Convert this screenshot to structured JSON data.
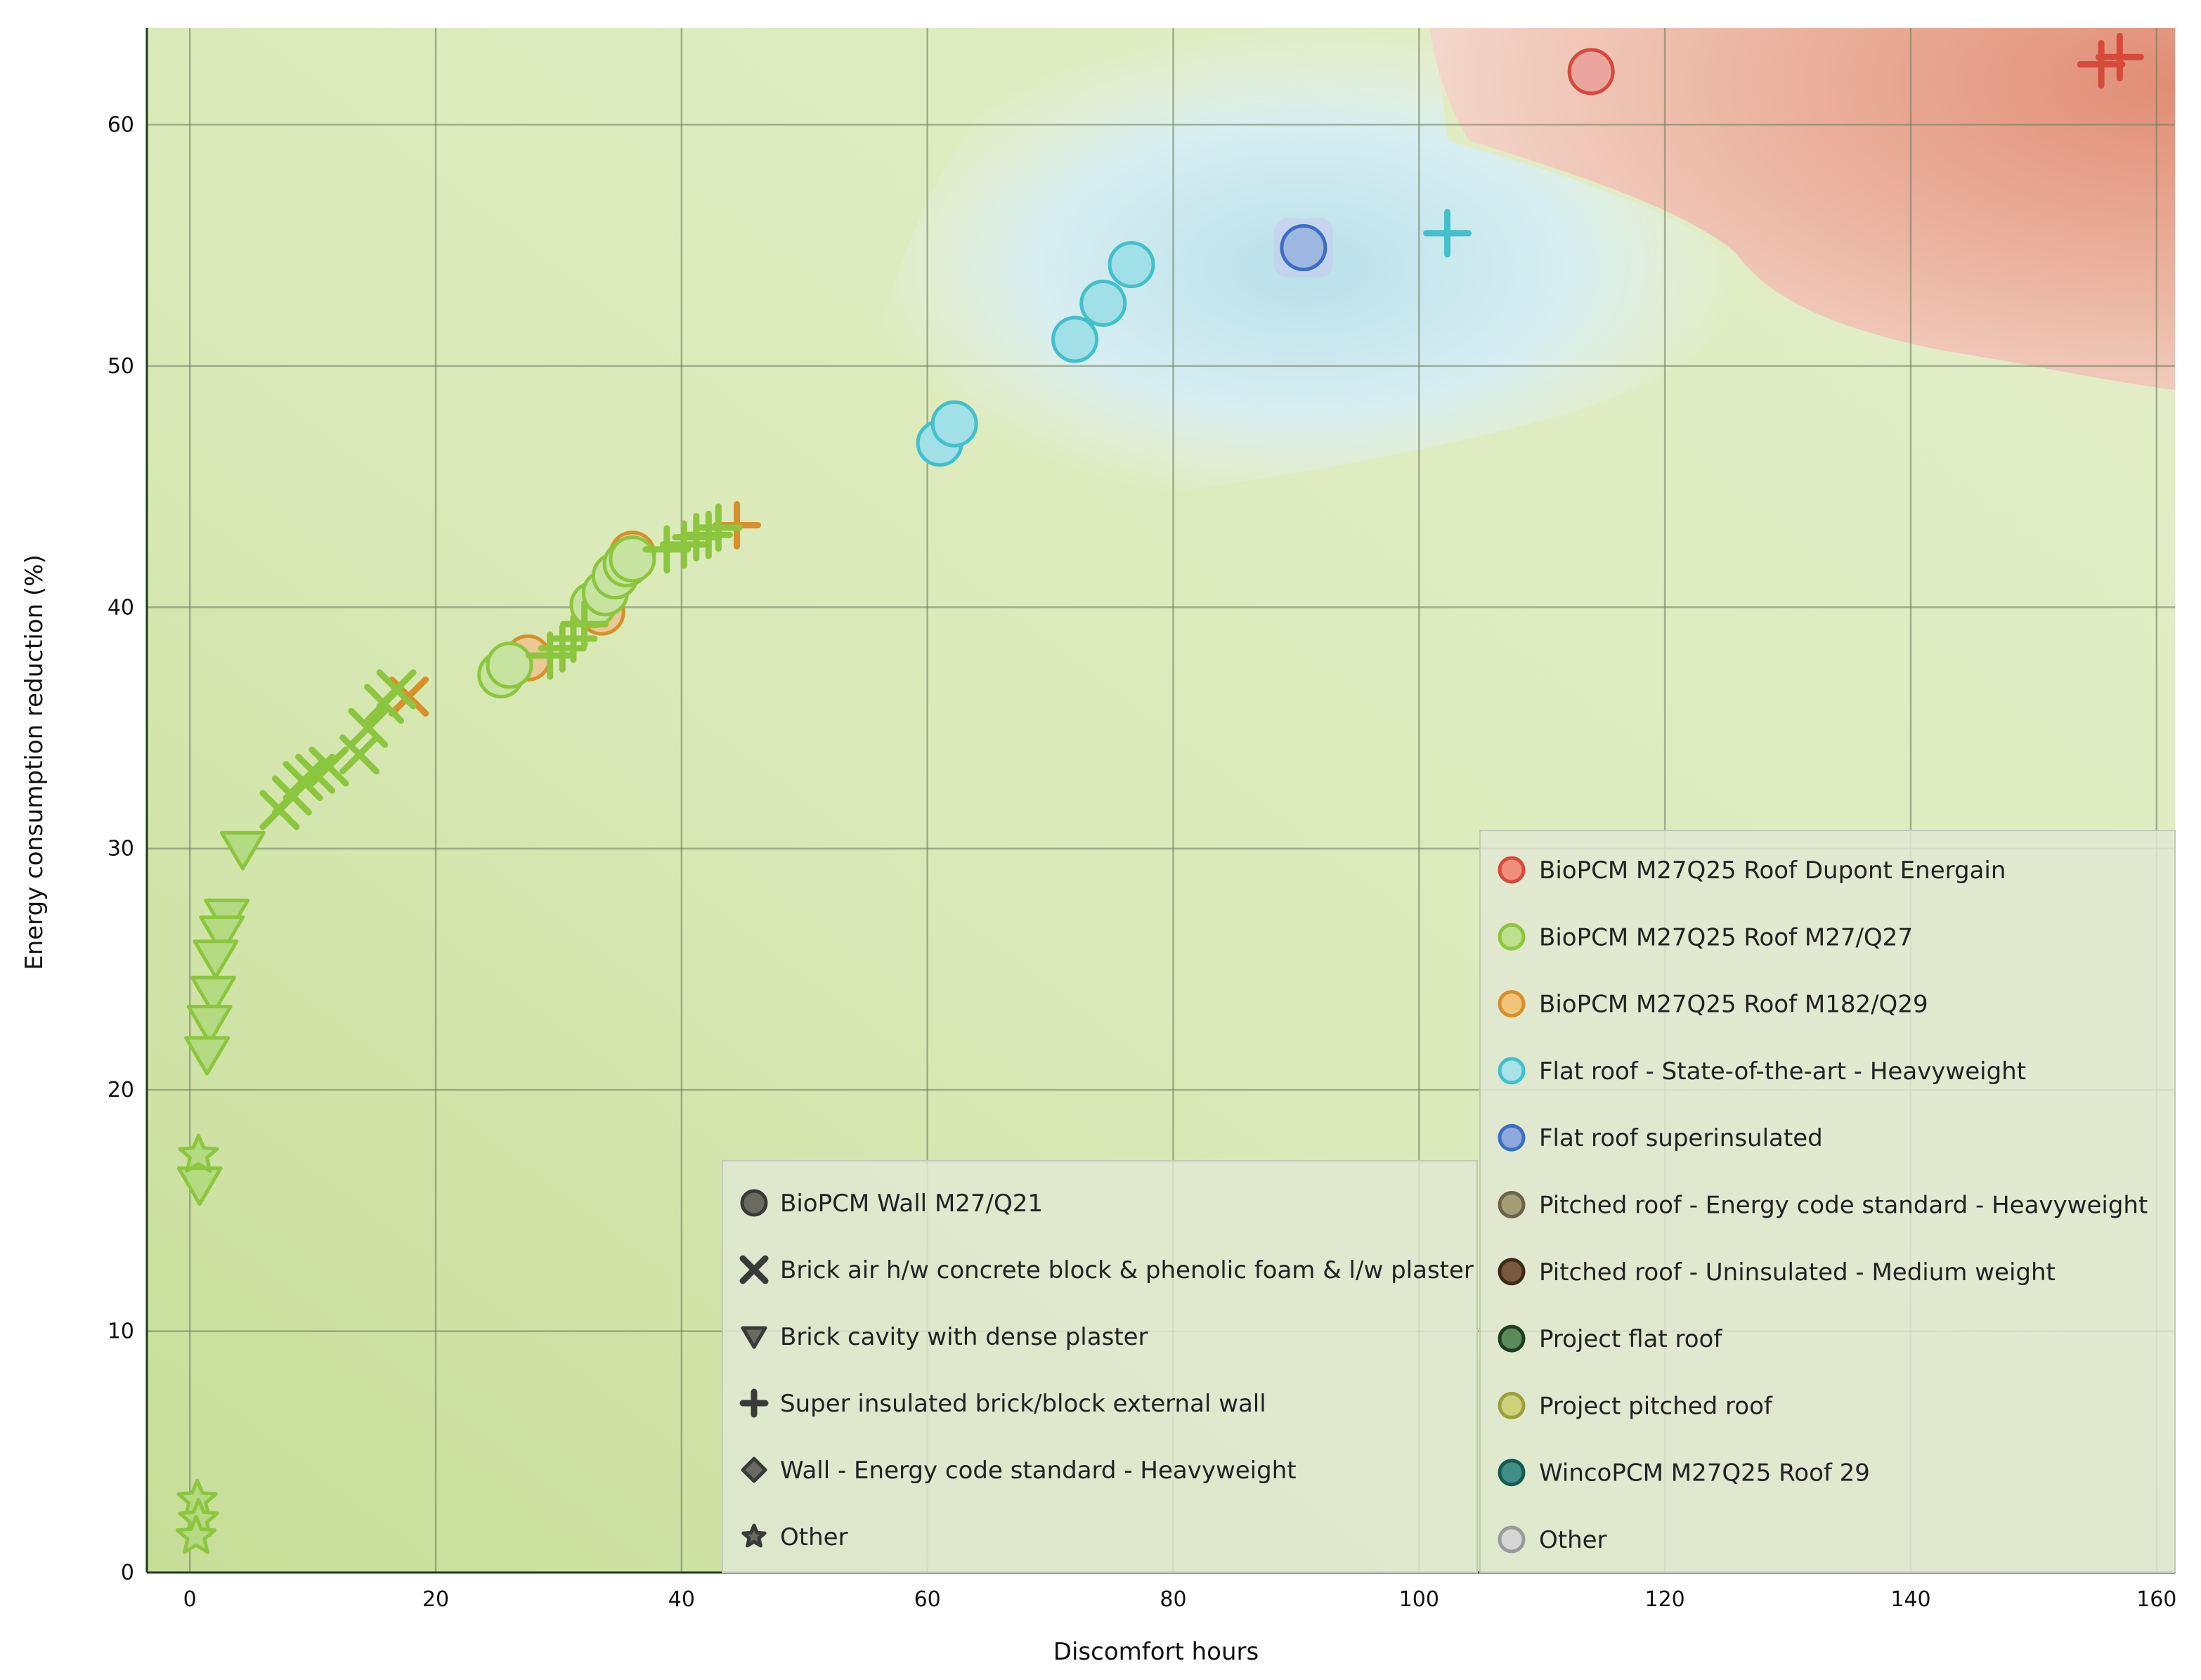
{
  "chart_data": {
    "type": "scatter",
    "title": "",
    "xlabel": "Discomfort hours",
    "ylabel": "Energy consumption reduction (%)",
    "xlim": [
      -3.5,
      161.5
    ],
    "ylim": [
      0,
      64
    ],
    "x_ticks": [
      "0",
      "20",
      "40",
      "60",
      "80",
      "100",
      "120",
      "140",
      "160"
    ],
    "y_ticks": [
      "0",
      "10",
      "20",
      "30",
      "40",
      "50",
      "60"
    ],
    "grid": true,
    "colors": {
      "green": "#8cc63f",
      "orange": "#d7902a",
      "cyan": "#42c0cc",
      "blue": "#3b6fc4",
      "red": "#d64a3c",
      "background_green": "#d3e6b0",
      "background_blue": "#cde9f0",
      "background_red": "#e9a58e"
    },
    "shape_legend": {
      "position": "bottom-center",
      "entries": [
        {
          "label": "BioPCM Wall M27/Q21",
          "marker": "circle"
        },
        {
          "label": "Brick air h/w concrete block & phenolic foam & l/w plaster",
          "marker": "x"
        },
        {
          "label": "Brick cavity with dense plaster",
          "marker": "triangle-down"
        },
        {
          "label": "Super insulated brick/block external wall",
          "marker": "plus"
        },
        {
          "label": "Wall - Energy code standard - Heavyweight",
          "marker": "diamond"
        },
        {
          "label": "Other",
          "marker": "star"
        }
      ]
    },
    "color_legend": {
      "position": "bottom-right",
      "entries": [
        {
          "label": "BioPCM M27Q25 Roof Dupont Energain",
          "fill": "#f08f7c",
          "stroke": "#d64a3c"
        },
        {
          "label": "BioPCM M27Q25 Roof M27/Q27",
          "fill": "#bfe08e",
          "stroke": "#8cc63f"
        },
        {
          "label": "BioPCM M27Q25 Roof M182/Q29",
          "fill": "#f2c57c",
          "stroke": "#d7902a"
        },
        {
          "label": "Flat roof - State-of-the-art - Heavyweight",
          "fill": "#a8e3e8",
          "stroke": "#42c0cc"
        },
        {
          "label": "Flat roof superinsulated",
          "fill": "#8fa9dc",
          "stroke": "#3b6fc4"
        },
        {
          "label": "Pitched roof - Energy code standard - Heavyweight",
          "fill": "#a59d76",
          "stroke": "#6b6448"
        },
        {
          "label": "Pitched roof - Uninsulated - Medium weight",
          "fill": "#7a5a3c",
          "stroke": "#3e2a18"
        },
        {
          "label": "Project flat roof",
          "fill": "#5d8a5a",
          "stroke": "#1e3e1e"
        },
        {
          "label": "Project pitched roof",
          "fill": "#cfd27a",
          "stroke": "#9aa03a"
        },
        {
          "label": "WincoPCM M27Q25 Roof 29",
          "fill": "#3f8f86",
          "stroke": "#155a52"
        },
        {
          "label": "Other",
          "fill": "#d6d6d6",
          "stroke": "#9a9a9a"
        }
      ]
    },
    "series": [
      {
        "name": "BioPCM M27Q25 Roof Dupont Energain",
        "color": "#d64a3c",
        "points": [
          {
            "x": 114,
            "y": 62.2,
            "marker": "circle"
          },
          {
            "x": 155.5,
            "y": 62.5,
            "marker": "plus"
          },
          {
            "x": 157,
            "y": 62.8,
            "marker": "plus"
          }
        ]
      },
      {
        "name": "Flat roof - State-of-the-art - Heavyweight",
        "color": "#42c0cc",
        "points": [
          {
            "x": 61,
            "y": 46.8,
            "marker": "circle"
          },
          {
            "x": 62.2,
            "y": 47.6,
            "marker": "circle"
          },
          {
            "x": 72,
            "y": 51.1,
            "marker": "circle"
          },
          {
            "x": 74.3,
            "y": 52.6,
            "marker": "circle"
          },
          {
            "x": 76.6,
            "y": 54.2,
            "marker": "circle"
          },
          {
            "x": 102.3,
            "y": 55.5,
            "marker": "plus"
          }
        ]
      },
      {
        "name": "Flat roof superinsulated",
        "color": "#3b6fc4",
        "points": [
          {
            "x": 90.6,
            "y": 54.9,
            "marker": "circle"
          }
        ]
      },
      {
        "name": "BioPCM M27Q25 Roof M182/Q29",
        "color": "#d7902a",
        "points": [
          {
            "x": 27.5,
            "y": 37.9,
            "marker": "circle"
          },
          {
            "x": 33.5,
            "y": 39.8,
            "marker": "circle"
          },
          {
            "x": 36,
            "y": 42.2,
            "marker": "circle"
          },
          {
            "x": 17.8,
            "y": 36.3,
            "marker": "x"
          },
          {
            "x": 44.5,
            "y": 43.4,
            "marker": "plus"
          }
        ]
      },
      {
        "name": "BioPCM M27Q25 Roof M27/Q27",
        "color": "#8cc63f",
        "points": [
          {
            "x": 25.3,
            "y": 37.2,
            "marker": "circle"
          },
          {
            "x": 26,
            "y": 37.6,
            "marker": "circle"
          },
          {
            "x": 32.8,
            "y": 40.1,
            "marker": "circle"
          },
          {
            "x": 33.8,
            "y": 40.6,
            "marker": "circle"
          },
          {
            "x": 34.6,
            "y": 41.3,
            "marker": "circle"
          },
          {
            "x": 35.5,
            "y": 41.8,
            "marker": "circle"
          },
          {
            "x": 36,
            "y": 42,
            "marker": "circle"
          },
          {
            "x": 7.3,
            "y": 31.6,
            "marker": "x"
          },
          {
            "x": 8.3,
            "y": 32.2,
            "marker": "x"
          },
          {
            "x": 9.2,
            "y": 32.8,
            "marker": "x"
          },
          {
            "x": 10.2,
            "y": 33.1,
            "marker": "x"
          },
          {
            "x": 11.3,
            "y": 33.4,
            "marker": "x"
          },
          {
            "x": 13.8,
            "y": 33.9,
            "marker": "x"
          },
          {
            "x": 14.5,
            "y": 35,
            "marker": "x"
          },
          {
            "x": 15.8,
            "y": 36,
            "marker": "x"
          },
          {
            "x": 16.8,
            "y": 36.6,
            "marker": "x"
          },
          {
            "x": 4.3,
            "y": 30,
            "marker": "triangle-down"
          },
          {
            "x": 3,
            "y": 27.2,
            "marker": "triangle-down"
          },
          {
            "x": 2.6,
            "y": 26.5,
            "marker": "triangle-down"
          },
          {
            "x": 2.1,
            "y": 25.5,
            "marker": "triangle-down"
          },
          {
            "x": 1.9,
            "y": 24,
            "marker": "triangle-down"
          },
          {
            "x": 1.6,
            "y": 22.8,
            "marker": "triangle-down"
          },
          {
            "x": 1.4,
            "y": 21.5,
            "marker": "triangle-down"
          },
          {
            "x": 0.8,
            "y": 16.1,
            "marker": "triangle-down"
          },
          {
            "x": 29.3,
            "y": 38,
            "marker": "plus"
          },
          {
            "x": 30.3,
            "y": 38.3,
            "marker": "plus"
          },
          {
            "x": 31.2,
            "y": 38.7,
            "marker": "plus"
          },
          {
            "x": 32.1,
            "y": 39.3,
            "marker": "plus"
          },
          {
            "x": 38.8,
            "y": 42.4,
            "marker": "plus"
          },
          {
            "x": 40.2,
            "y": 42.6,
            "marker": "plus"
          },
          {
            "x": 41.2,
            "y": 42.9,
            "marker": "plus"
          },
          {
            "x": 42.2,
            "y": 43,
            "marker": "plus"
          },
          {
            "x": 43,
            "y": 43.3,
            "marker": "plus"
          },
          {
            "x": 0.7,
            "y": 17.3,
            "marker": "star"
          },
          {
            "x": 0.6,
            "y": 3,
            "marker": "star"
          },
          {
            "x": 0.7,
            "y": 2.2,
            "marker": "star"
          },
          {
            "x": 0.5,
            "y": 1.5,
            "marker": "star"
          }
        ]
      }
    ]
  }
}
